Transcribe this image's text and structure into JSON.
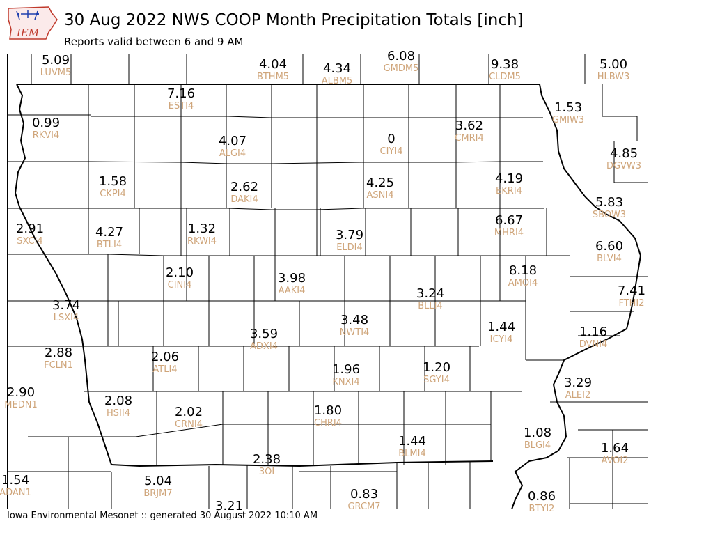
{
  "header": {
    "logo_text": "IEM",
    "title": "30 Aug 2022 NWS COOP Month Precipitation Totals [inch]",
    "subtitle": "Reports valid between 6 and 9 AM"
  },
  "colors": {
    "value_text": "#000000",
    "station_id_text": "#cfa57a",
    "border": "#000000",
    "logo_red": "#c0392b",
    "logo_blue": "#1f3fae"
  },
  "stations": [
    {
      "id": "LUVM5",
      "value": "5.09"
    },
    {
      "id": "BTHM5",
      "value": "4.04"
    },
    {
      "id": "ALBM5",
      "value": "4.34"
    },
    {
      "id": "GMDM5",
      "value": "6.08"
    },
    {
      "id": "CLDM5",
      "value": "9.38"
    },
    {
      "id": "HLBW3",
      "value": "5.00"
    },
    {
      "id": "ESTI4",
      "value": "7.16"
    },
    {
      "id": "RKVI4",
      "value": "0.99"
    },
    {
      "id": "GMIW3",
      "value": "1.53"
    },
    {
      "id": "ALGI4",
      "value": "4.07"
    },
    {
      "id": "CIYI4",
      "value": "0"
    },
    {
      "id": "CMRI4",
      "value": "3.62"
    },
    {
      "id": "DGVW3",
      "value": "4.85"
    },
    {
      "id": "CKPI4",
      "value": "1.58"
    },
    {
      "id": "DAKI4",
      "value": "2.62"
    },
    {
      "id": "ASNI4",
      "value": "4.25"
    },
    {
      "id": "EKRI4",
      "value": "4.19"
    },
    {
      "id": "SBOW3",
      "value": "5.83"
    },
    {
      "id": "SXCI4",
      "value": "2.91"
    },
    {
      "id": "BTLI4",
      "value": "4.27"
    },
    {
      "id": "RKWI4",
      "value": "1.32"
    },
    {
      "id": "ELDI4",
      "value": "3.79"
    },
    {
      "id": "MHRI4",
      "value": "6.67"
    },
    {
      "id": "BLVI4",
      "value": "6.60"
    },
    {
      "id": "CINI4",
      "value": "2.10"
    },
    {
      "id": "AAKI4",
      "value": "3.98"
    },
    {
      "id": "AMOI4",
      "value": "8.18"
    },
    {
      "id": "FTHI2",
      "value": "7.41"
    },
    {
      "id": "LSXI4",
      "value": "3.74"
    },
    {
      "id": "BLLI4",
      "value": "3.24"
    },
    {
      "id": "NWTI4",
      "value": "3.48"
    },
    {
      "id": "ICYI4",
      "value": "1.44"
    },
    {
      "id": "DVNI4",
      "value": "1.16"
    },
    {
      "id": "ADXI4",
      "value": "3.59"
    },
    {
      "id": "FCLN1",
      "value": "2.88"
    },
    {
      "id": "ATLI4",
      "value": "2.06"
    },
    {
      "id": "KNXI4",
      "value": "1.96"
    },
    {
      "id": "SGYI4",
      "value": "1.20"
    },
    {
      "id": "ALEI2",
      "value": "3.29"
    },
    {
      "id": "MEDN1",
      "value": "2.90"
    },
    {
      "id": "HSII4",
      "value": "2.08"
    },
    {
      "id": "CRNI4",
      "value": "2.02"
    },
    {
      "id": "CHRI4",
      "value": "1.80"
    },
    {
      "id": "BLMI4",
      "value": "1.44"
    },
    {
      "id": "BLGI4",
      "value": "1.08"
    },
    {
      "id": "AVOI2",
      "value": "1.64"
    },
    {
      "id": "3OI",
      "value": "2.38"
    },
    {
      "id": "ADAN1",
      "value": "1.54"
    },
    {
      "id": "BRJM7",
      "value": "5.04"
    },
    {
      "id": "GRCM7",
      "value": "0.83"
    },
    {
      "id": "BTYI2",
      "value": "0.86"
    },
    {
      "id": "",
      "value": "3.21"
    }
  ],
  "footer": {
    "text": "Iowa Environmental Mesonet :: generated 30 August 2022 10:10 AM"
  }
}
